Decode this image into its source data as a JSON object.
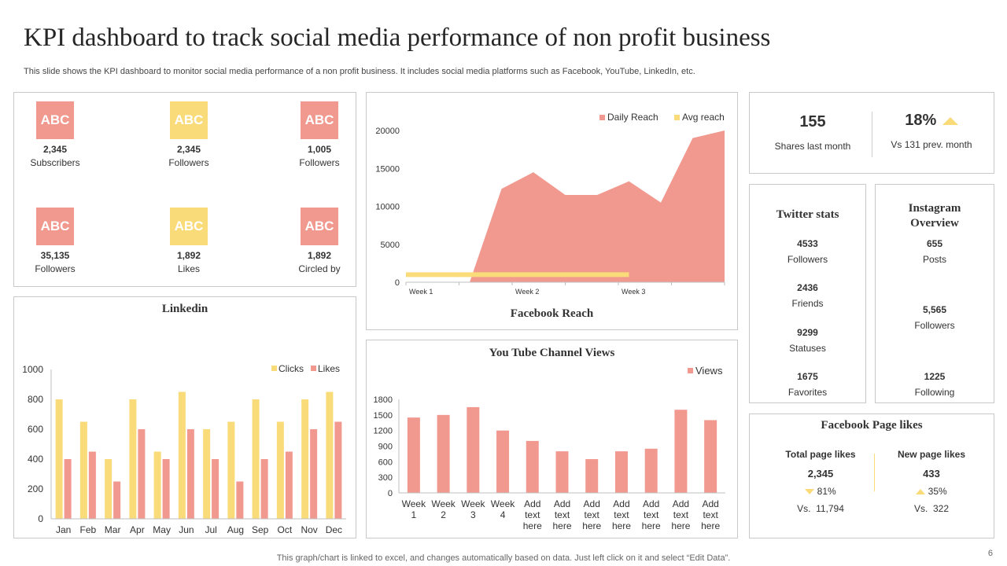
{
  "header": {
    "title": "KPI dashboard to track social media performance of non profit business",
    "subtitle": "This slide shows the KPI dashboard to monitor social media performance of a non profit business. It includes social media platforms such as Facebook, YouTube, LinkedIn, etc."
  },
  "kpis": [
    {
      "icon_text": "ABC",
      "value": "2,345",
      "label": "Subscribers",
      "color": "#f1998f"
    },
    {
      "icon_text": "ABC",
      "value": "2,345",
      "label": "Followers",
      "color": "#f9dc79"
    },
    {
      "icon_text": "ABC",
      "value": "1,005",
      "label": "Followers",
      "color": "#f1998f"
    },
    {
      "icon_text": "ABC",
      "value": "35,135",
      "label": "Followers",
      "color": "#f1998f"
    },
    {
      "icon_text": "ABC",
      "value": "1,892",
      "label": "Likes",
      "color": "#f9dc79"
    },
    {
      "icon_text": "ABC",
      "value": "1,892",
      "label": "Circled by",
      "color": "#f1998f"
    }
  ],
  "shares": {
    "value": "155",
    "label": "Shares last month",
    "percent": "18%",
    "compare": "Vs 131 prev. month"
  },
  "twitter": {
    "title": "Twitter stats",
    "stats": [
      {
        "value": "4533",
        "label": "Followers"
      },
      {
        "value": "2436",
        "label": "Friends"
      },
      {
        "value": "9299",
        "label": "Statuses"
      },
      {
        "value": "1675",
        "label": "Favorites"
      }
    ]
  },
  "instagram": {
    "title": "Instagram Overview",
    "stats": [
      {
        "value": "655",
        "label": "Posts"
      },
      {
        "value": "5,565",
        "label": "Followers"
      },
      {
        "value": "1225",
        "label": "Following"
      }
    ]
  },
  "fb_likes": {
    "title": "Facebook Page likes",
    "total": {
      "label": "Total page likes",
      "value": "2,345",
      "percent": "81%",
      "vs": "Vs.  11,794"
    },
    "new": {
      "label": "New page likes",
      "value": "433",
      "percent": "35%",
      "vs": "Vs.  322"
    }
  },
  "colors": {
    "pink": "#f1998f",
    "yellow": "#f9dc79",
    "axis": "#bfbfbf"
  },
  "footer": "This graph/chart is linked to excel,  and changes automatically based on data. Just left click on it and select “Edit Data”.",
  "page_number": "6",
  "chart_data": [
    {
      "id": "facebook",
      "type": "area",
      "title": "Facebook Reach",
      "x_labels": [
        "Week 1",
        "",
        "Week 2",
        "",
        "Week 3",
        ""
      ],
      "ylim": [
        0,
        20000
      ],
      "yticks": [
        0,
        5000,
        10000,
        15000,
        20000
      ],
      "series": [
        {
          "name": "Daily Reach",
          "values": [
            0,
            0,
            0,
            12300,
            14500,
            11500,
            11500,
            13300,
            10500,
            19000,
            20000
          ]
        },
        {
          "name": "Avg reach",
          "values": [
            1000,
            1000,
            1000,
            1000,
            1000,
            1000,
            1000,
            1000
          ]
        }
      ]
    },
    {
      "id": "linkedin",
      "type": "bar",
      "title": "Linkedin",
      "categories": [
        "Jan",
        "Feb",
        "Mar",
        "Apr",
        "May",
        "Jun",
        "Jul",
        "Aug",
        "Sep",
        "Oct",
        "Nov",
        "Dec"
      ],
      "ylim": [
        0,
        1000
      ],
      "yticks": [
        0,
        200,
        400,
        600,
        800,
        1000
      ],
      "series": [
        {
          "name": "Clicks",
          "values": [
            800,
            650,
            400,
            800,
            450,
            850,
            600,
            650,
            800,
            650,
            800,
            850
          ]
        },
        {
          "name": "Likes",
          "values": [
            400,
            450,
            250,
            600,
            400,
            600,
            400,
            250,
            400,
            450,
            600,
            650
          ]
        }
      ]
    },
    {
      "id": "youtube",
      "type": "bar",
      "title": "You Tube Channel Views",
      "categories": [
        [
          "Week",
          "1"
        ],
        [
          "Week",
          "2"
        ],
        [
          "Week",
          "3"
        ],
        [
          "Week",
          "4"
        ],
        [
          "Add",
          "text",
          "here"
        ],
        [
          "Add",
          "text",
          "here"
        ],
        [
          "Add",
          "text",
          "here"
        ],
        [
          "Add",
          "text",
          "here"
        ],
        [
          "Add",
          "text",
          "here"
        ],
        [
          "Add",
          "text",
          "here"
        ],
        [
          "Add",
          "text",
          "here"
        ]
      ],
      "ylim": [
        0,
        1800
      ],
      "yticks": [
        0,
        300,
        600,
        900,
        1200,
        1500,
        1800
      ],
      "series": [
        {
          "name": "Views",
          "values": [
            1450,
            1500,
            1650,
            1200,
            1000,
            800,
            650,
            800,
            850,
            1600,
            1400
          ]
        }
      ]
    }
  ]
}
